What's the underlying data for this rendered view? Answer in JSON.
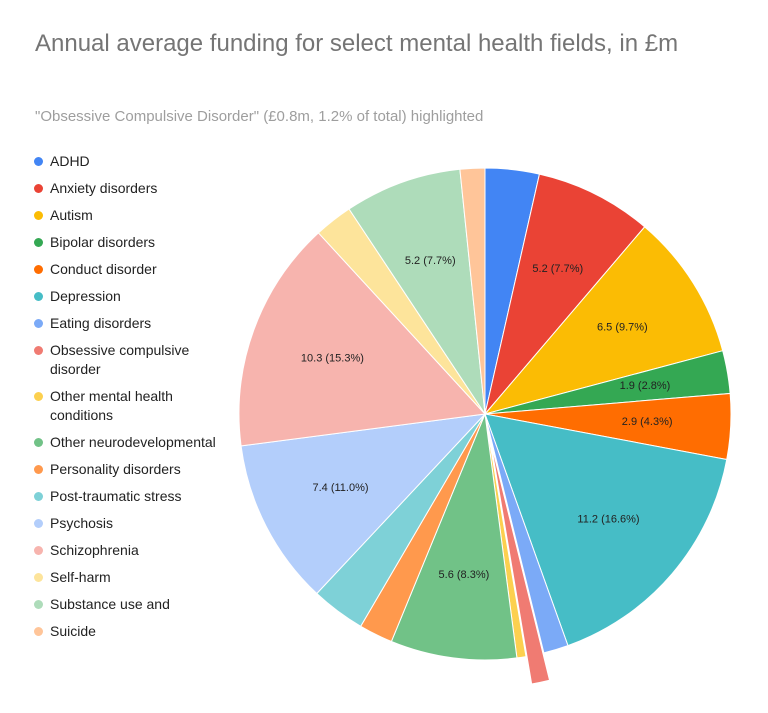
{
  "chart_data": {
    "type": "pie",
    "title": "Annual average funding for select mental health fields, in £m",
    "subtitle": "\"Obsessive Compulsive Disorder\" (£0.8m, 1.2% of total) highlighted",
    "categories": [
      "ADHD",
      "Anxiety disorders",
      "Autism",
      "Bipolar disorders",
      "Conduct disorder",
      "Depression",
      "Eating disorders",
      "Obsessive compulsive disorder",
      "Other mental health conditions",
      "Other neurodevelopmental",
      "Personality disorders",
      "Post-traumatic stress",
      "Psychosis",
      "Schizophrenia",
      "Self-harm",
      "Substance use and",
      "Suicide"
    ],
    "values": [
      2.4,
      5.2,
      6.5,
      1.9,
      2.9,
      11.2,
      1.1,
      0.8,
      0.4,
      5.6,
      1.5,
      2.4,
      7.4,
      10.3,
      1.7,
      5.2,
      1.1
    ],
    "value_labels": [
      null,
      "5.2 (7.7%)",
      "6.5 (9.7%)",
      "1.9 (2.8%)",
      "2.9 (4.3%)",
      "11.2 (16.6%)",
      null,
      null,
      null,
      "5.6 (8.3%)",
      null,
      null,
      "7.4 (11.0%)",
      "10.3 (15.3%)",
      null,
      "5.2 (7.7%)",
      null
    ],
    "colors": [
      "#4285f4",
      "#ea4335",
      "#fbbc04",
      "#34a853",
      "#ff6d01",
      "#46bdc6",
      "#7baaf7",
      "#f07b72",
      "#fcd04f",
      "#71c287",
      "#ff994d",
      "#7ed1d7",
      "#b3cefb",
      "#f7b4ae",
      "#fde49b",
      "#aedcba",
      "#ffc599"
    ],
    "highlighted": "Obsessive compulsive disorder",
    "legend": "left"
  }
}
